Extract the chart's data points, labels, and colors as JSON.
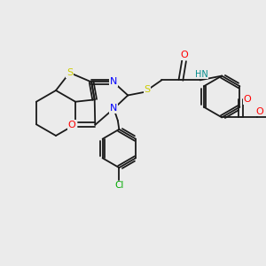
{
  "background_color": "#EBEBEB",
  "atom_colors": {
    "S": "#CCCC00",
    "N": "#0000FF",
    "O": "#FF0000",
    "C": "#1a1a1a",
    "Cl": "#00AA00",
    "HN": "#008B8B"
  },
  "font_size": 7.5,
  "line_width": 1.3,
  "xlim": [
    0,
    10
  ],
  "ylim": [
    0,
    10
  ]
}
